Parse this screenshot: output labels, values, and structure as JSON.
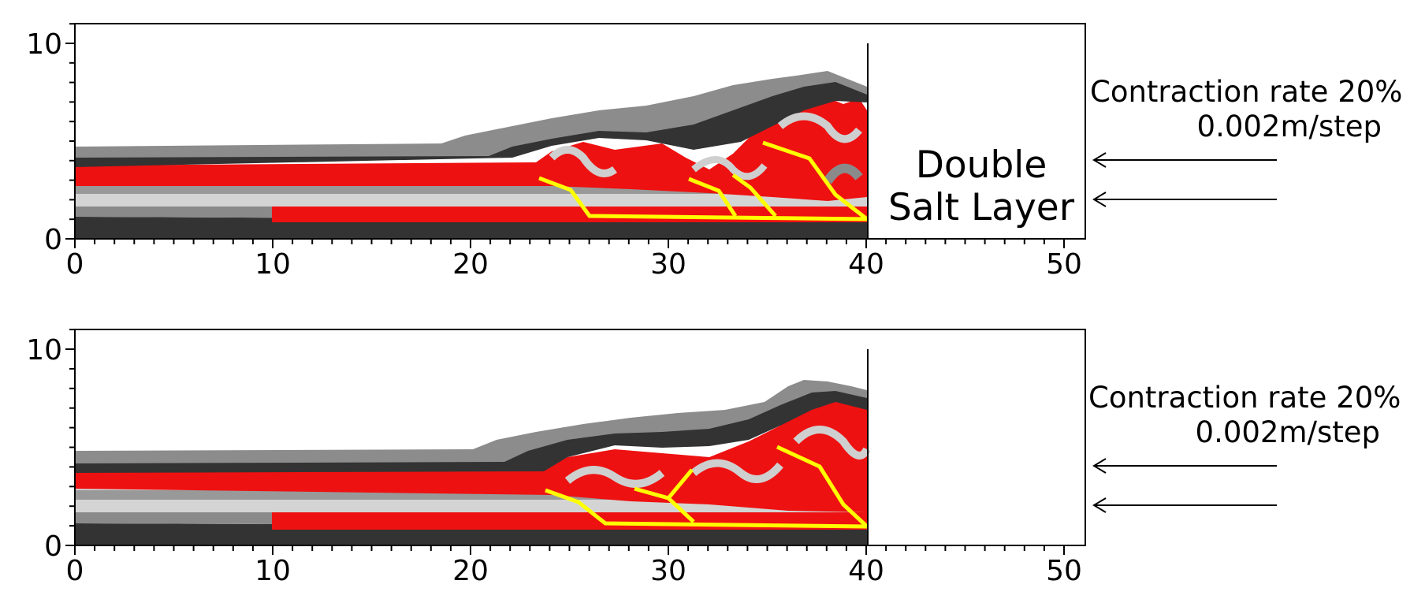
{
  "figure": {
    "panels": [
      {
        "id": "top",
        "inset_label_lines": [
          "Double",
          "Salt Layer"
        ],
        "annotation": {
          "line1": "Contraction rate 20%",
          "line2": "0.002m/step"
        },
        "x_ticks": [
          "0",
          "10",
          "20",
          "30",
          "40",
          "50"
        ],
        "y_ticks": [
          "0",
          "10"
        ],
        "arrows": 2
      },
      {
        "id": "bottom",
        "inset_label_lines": [],
        "annotation": {
          "line1": "Contraction rate 20%",
          "line2": "0.002m/step"
        },
        "x_ticks": [
          "0",
          "10",
          "20",
          "30",
          "40",
          "50"
        ],
        "y_ticks": [
          "0",
          "10"
        ],
        "arrows": 2
      }
    ],
    "colors": {
      "salt": "#ee1111",
      "dark": "#333333",
      "mid": "#8a8a8a",
      "light": "#cfcfcf",
      "fault": "#ffff00"
    }
  }
}
